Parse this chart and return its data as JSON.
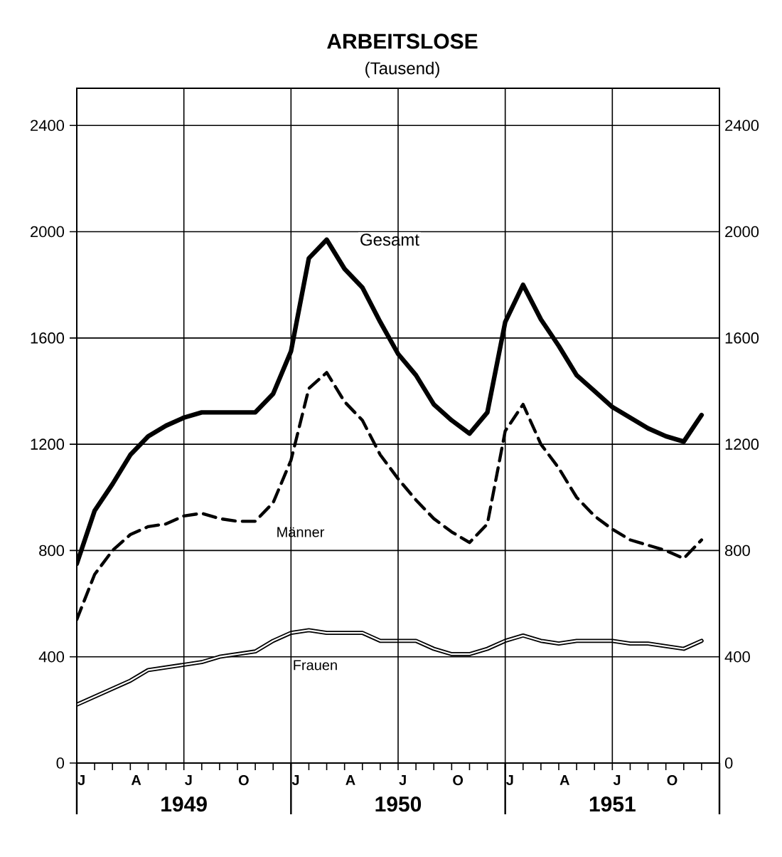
{
  "chart_data": {
    "type": "line",
    "title": "ARBEITSLOSE",
    "subtitle": "(Tausend)",
    "categories": [
      "J",
      null,
      null,
      "A",
      null,
      null,
      "J",
      null,
      null,
      "O",
      null,
      null,
      "J",
      null,
      null,
      "A",
      null,
      null,
      "J",
      null,
      null,
      "O",
      null,
      null,
      "J",
      null,
      null,
      "A",
      null,
      null,
      "J",
      null,
      null,
      "O",
      null,
      null
    ],
    "series": [
      {
        "name": "Gesamt",
        "color": "#000000",
        "line_style": "solid",
        "values": [
          750,
          950,
          1050,
          1160,
          1230,
          1270,
          1300,
          1320,
          1320,
          1320,
          1320,
          1390,
          1550,
          1900,
          1970,
          1860,
          1790,
          1660,
          1540,
          1460,
          1350,
          1290,
          1240,
          1320,
          1660,
          1800,
          1670,
          1570,
          1460,
          1400,
          1340,
          1300,
          1260,
          1230,
          1210,
          1310
        ]
      },
      {
        "name": "Männer",
        "color": "#000000",
        "line_style": "dashed",
        "values": [
          540,
          710,
          800,
          860,
          890,
          900,
          930,
          940,
          920,
          910,
          910,
          980,
          1140,
          1410,
          1470,
          1360,
          1290,
          1160,
          1070,
          990,
          920,
          870,
          830,
          900,
          1250,
          1350,
          1200,
          1110,
          1000,
          930,
          880,
          840,
          820,
          800,
          770,
          840
        ]
      },
      {
        "name": "Frauen",
        "color": "#000000",
        "line_style": "solid",
        "values": [
          220,
          250,
          280,
          310,
          350,
          360,
          370,
          380,
          400,
          410,
          420,
          460,
          490,
          500,
          490,
          490,
          490,
          460,
          460,
          460,
          430,
          410,
          410,
          430,
          460,
          480,
          460,
          450,
          460,
          460,
          460,
          450,
          450,
          440,
          430,
          460
        ]
      }
    ],
    "x2lim": [
      "1949-01",
      "1952-01"
    ],
    "x2ticks": [
      {
        "value": "1949-01",
        "label": null
      },
      {
        "value": "1949-07",
        "label": "1949"
      },
      {
        "value": "1950-01",
        "label": null
      },
      {
        "value": "1950-07",
        "label": "1950"
      },
      {
        "value": "1951-01",
        "label": null
      },
      {
        "value": "1951-07",
        "label": "1951"
      },
      {
        "value": "1952-01",
        "label": null
      }
    ],
    "ylim": [
      0,
      2540
    ],
    "yticks": [
      0,
      400,
      800,
      1200,
      1600,
      2000,
      2400
    ],
    "y2lim": [
      0,
      2540
    ],
    "y2ticks": [
      0,
      400,
      800,
      1200,
      1600,
      2000,
      2400
    ],
    "grid": true,
    "marker": "none"
  }
}
